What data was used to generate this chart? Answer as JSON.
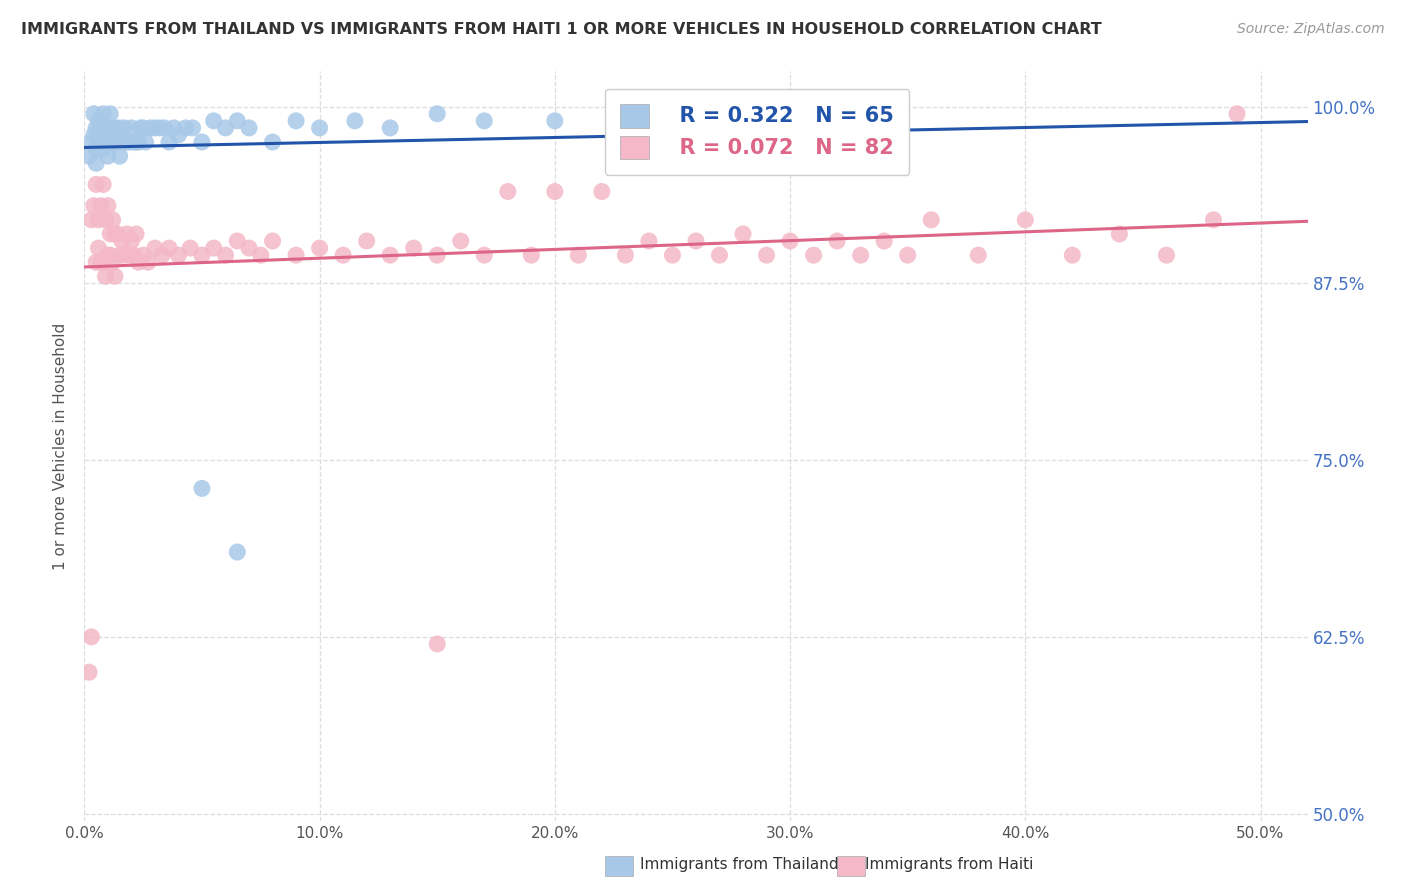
{
  "title": "IMMIGRANTS FROM THAILAND VS IMMIGRANTS FROM HAITI 1 OR MORE VEHICLES IN HOUSEHOLD CORRELATION CHART",
  "source": "Source: ZipAtlas.com",
  "ylabel": "1 or more Vehicles in Household",
  "ytick_labels": [
    "50.0%",
    "62.5%",
    "75.0%",
    "87.5%",
    "100.0%"
  ],
  "ytick_values": [
    0.5,
    0.625,
    0.75,
    0.875,
    1.0
  ],
  "xtick_labels": [
    "0.0%",
    "10.0%",
    "20.0%",
    "30.0%",
    "40.0%",
    "50.0%"
  ],
  "xtick_values": [
    0.0,
    0.1,
    0.2,
    0.3,
    0.4,
    0.5
  ],
  "xlim": [
    0.0,
    0.52
  ],
  "ylim": [
    0.495,
    1.025
  ],
  "legend_r_thailand": "R = 0.322",
  "legend_n_thailand": "N = 65",
  "legend_r_haiti": "R = 0.072",
  "legend_n_haiti": "N = 82",
  "color_thailand": "#a8c8e8",
  "color_haiti": "#f4b8c8",
  "trendline_color_thailand": "#2255aa",
  "trendline_color_haiti": "#dd6688",
  "background_color": "#ffffff",
  "grid_color": "#dddddd",
  "title_color": "#333333",
  "source_color": "#999999",
  "right_axis_color": "#4472c4",
  "thailand_x": [
    0.002,
    0.003,
    0.004,
    0.004,
    0.005,
    0.005,
    0.005,
    0.006,
    0.006,
    0.007,
    0.007,
    0.008,
    0.008,
    0.009,
    0.009,
    0.01,
    0.01,
    0.011,
    0.011,
    0.012,
    0.012,
    0.013,
    0.013,
    0.014,
    0.015,
    0.015,
    0.016,
    0.017,
    0.018,
    0.019,
    0.02,
    0.021,
    0.022,
    0.023,
    0.024,
    0.025,
    0.026,
    0.028,
    0.03,
    0.032,
    0.034,
    0.036,
    0.038,
    0.04,
    0.043,
    0.046,
    0.05,
    0.055,
    0.06,
    0.065,
    0.07,
    0.08,
    0.09,
    0.1,
    0.115,
    0.13,
    0.15,
    0.17,
    0.2,
    0.23,
    0.26,
    0.3,
    0.34,
    0.05,
    0.065
  ],
  "thailand_y": [
    0.965,
    0.975,
    0.995,
    0.98,
    0.985,
    0.97,
    0.96,
    0.975,
    0.99,
    0.985,
    0.975,
    0.995,
    0.97,
    0.985,
    0.975,
    0.975,
    0.965,
    0.985,
    0.995,
    0.975,
    0.975,
    0.985,
    0.975,
    0.975,
    0.985,
    0.965,
    0.975,
    0.985,
    0.975,
    0.975,
    0.985,
    0.975,
    0.975,
    0.975,
    0.985,
    0.985,
    0.975,
    0.985,
    0.985,
    0.985,
    0.985,
    0.975,
    0.985,
    0.98,
    0.985,
    0.985,
    0.975,
    0.99,
    0.985,
    0.99,
    0.985,
    0.975,
    0.99,
    0.985,
    0.99,
    0.985,
    0.995,
    0.99,
    0.99,
    0.995,
    0.985,
    0.99,
    0.985,
    0.73,
    0.685
  ],
  "haiti_x": [
    0.002,
    0.003,
    0.004,
    0.005,
    0.005,
    0.006,
    0.006,
    0.007,
    0.007,
    0.008,
    0.008,
    0.009,
    0.009,
    0.01,
    0.01,
    0.011,
    0.011,
    0.012,
    0.012,
    0.013,
    0.013,
    0.014,
    0.015,
    0.016,
    0.017,
    0.018,
    0.019,
    0.02,
    0.021,
    0.022,
    0.023,
    0.025,
    0.027,
    0.03,
    0.033,
    0.036,
    0.04,
    0.045,
    0.05,
    0.055,
    0.06,
    0.065,
    0.07,
    0.075,
    0.08,
    0.09,
    0.1,
    0.11,
    0.12,
    0.13,
    0.14,
    0.15,
    0.16,
    0.17,
    0.18,
    0.19,
    0.2,
    0.21,
    0.22,
    0.23,
    0.24,
    0.25,
    0.26,
    0.27,
    0.28,
    0.29,
    0.3,
    0.31,
    0.32,
    0.33,
    0.34,
    0.35,
    0.36,
    0.38,
    0.4,
    0.42,
    0.44,
    0.46,
    0.48,
    0.49,
    0.003,
    0.15
  ],
  "haiti_y": [
    0.6,
    0.92,
    0.93,
    0.89,
    0.945,
    0.92,
    0.9,
    0.93,
    0.89,
    0.945,
    0.89,
    0.92,
    0.88,
    0.93,
    0.895,
    0.91,
    0.895,
    0.92,
    0.89,
    0.91,
    0.88,
    0.91,
    0.895,
    0.905,
    0.895,
    0.91,
    0.895,
    0.905,
    0.895,
    0.91,
    0.89,
    0.895,
    0.89,
    0.9,
    0.895,
    0.9,
    0.895,
    0.9,
    0.895,
    0.9,
    0.895,
    0.905,
    0.9,
    0.895,
    0.905,
    0.895,
    0.9,
    0.895,
    0.905,
    0.895,
    0.9,
    0.895,
    0.905,
    0.895,
    0.94,
    0.895,
    0.94,
    0.895,
    0.94,
    0.895,
    0.905,
    0.895,
    0.905,
    0.895,
    0.91,
    0.895,
    0.905,
    0.895,
    0.905,
    0.895,
    0.905,
    0.895,
    0.92,
    0.895,
    0.92,
    0.895,
    0.91,
    0.895,
    0.92,
    0.995,
    0.625,
    0.62
  ]
}
